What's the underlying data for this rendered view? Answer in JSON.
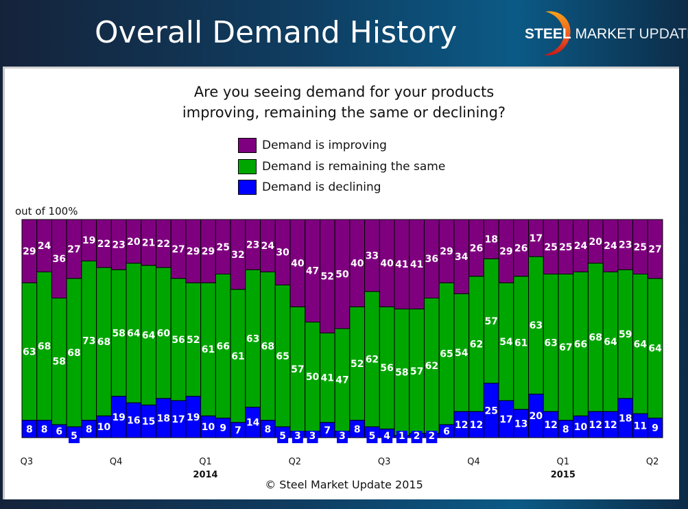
{
  "header": {
    "title": "Overall Demand History",
    "logo": {
      "bold": "STEEL",
      "mid": "MARKET",
      "light": "UPDATE"
    }
  },
  "footer": {
    "copyright": "© Steel Market Update 2015"
  },
  "chart_data": {
    "type": "bar",
    "stacked": true,
    "title": "Are you seeing demand for your products improving, remaining the same or declining?",
    "title_lines": [
      "Are you seeing demand for your products",
      "improving, remaining the same or declining?"
    ],
    "ylabel": "out of 100%",
    "ylim": [
      0,
      100
    ],
    "grid": false,
    "legend_position": "top-center",
    "x_ticks": [
      {
        "label": "Q3",
        "index": 0
      },
      {
        "label": "Q4",
        "index": 6
      },
      {
        "label": "Q1",
        "index": 12,
        "year": "2014"
      },
      {
        "label": "Q2",
        "index": 18
      },
      {
        "label": "Q3",
        "index": 24
      },
      {
        "label": "Q4",
        "index": 30
      },
      {
        "label": "Q1",
        "index": 36,
        "year": "2015"
      },
      {
        "label": "Q2",
        "index": 42
      }
    ],
    "series": [
      {
        "name": "Demand is declining",
        "color": "#0000ff",
        "values": [
          8,
          8,
          6,
          5,
          8,
          10,
          19,
          16,
          15,
          18,
          17,
          19,
          10,
          9,
          7,
          14,
          8,
          5,
          3,
          3,
          7,
          3,
          8,
          5,
          4,
          1,
          2,
          2,
          6,
          12,
          12,
          25,
          17,
          13,
          20,
          12,
          8,
          10,
          12,
          12,
          18,
          11,
          9
        ]
      },
      {
        "name": "Demand is remaining the same",
        "color": "#00a600",
        "values": [
          63,
          68,
          58,
          68,
          73,
          68,
          58,
          64,
          64,
          60,
          56,
          52,
          61,
          66,
          61,
          63,
          68,
          65,
          57,
          50,
          41,
          47,
          52,
          62,
          56,
          58,
          57,
          62,
          65,
          54,
          62,
          57,
          54,
          61,
          63,
          63,
          67,
          66,
          68,
          64,
          59,
          64,
          64
        ]
      },
      {
        "name": "Demand is improving",
        "color": "#7f007f",
        "values": [
          29,
          24,
          36,
          27,
          19,
          22,
          23,
          20,
          21,
          22,
          27,
          29,
          29,
          25,
          32,
          23,
          24,
          30,
          40,
          47,
          52,
          50,
          40,
          33,
          40,
          41,
          41,
          36,
          29,
          34,
          26,
          18,
          29,
          26,
          17,
          25,
          25,
          24,
          20,
          24,
          23,
          25,
          27
        ]
      }
    ],
    "legend": [
      {
        "label": "Demand is improving",
        "color": "#7f007f"
      },
      {
        "label": "Demand is remaining the same",
        "color": "#00a600"
      },
      {
        "label": "Demand is declining",
        "color": "#0000ff"
      }
    ]
  }
}
